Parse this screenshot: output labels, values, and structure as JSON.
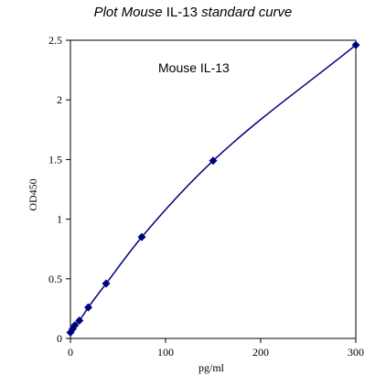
{
  "title_parts": {
    "part1": "Plot Mouse",
    "part2": "IL-13",
    "part3": "standard curve"
  },
  "chart_data": {
    "type": "scatter",
    "title": "Plot Mouse IL-13 standard curve",
    "annotation": "Mouse IL-13",
    "xlabel": "pg/ml",
    "ylabel": "OD450",
    "xlim": [
      0,
      300
    ],
    "ylim": [
      0,
      2.5
    ],
    "x_ticks": [
      0,
      100,
      200,
      300
    ],
    "x_tick_labels": [
      "0",
      "100",
      "200",
      "300"
    ],
    "y_ticks": [
      0,
      0.5,
      1,
      1.5,
      2,
      2.5
    ],
    "y_tick_labels": [
      "0",
      "0.5",
      "1",
      "1.5",
      "2",
      "2.5"
    ],
    "grid": false,
    "series": [
      {
        "x": [
          0,
          2.34,
          4.69,
          9.38,
          18.75,
          37.5,
          75,
          150,
          300
        ],
        "y": [
          0.05,
          0.08,
          0.11,
          0.15,
          0.26,
          0.46,
          0.85,
          1.49,
          2.46
        ],
        "marker": "diamond",
        "line": "fitted-curve"
      }
    ],
    "colors": {
      "series": "#000080",
      "axis": "#000000"
    }
  }
}
